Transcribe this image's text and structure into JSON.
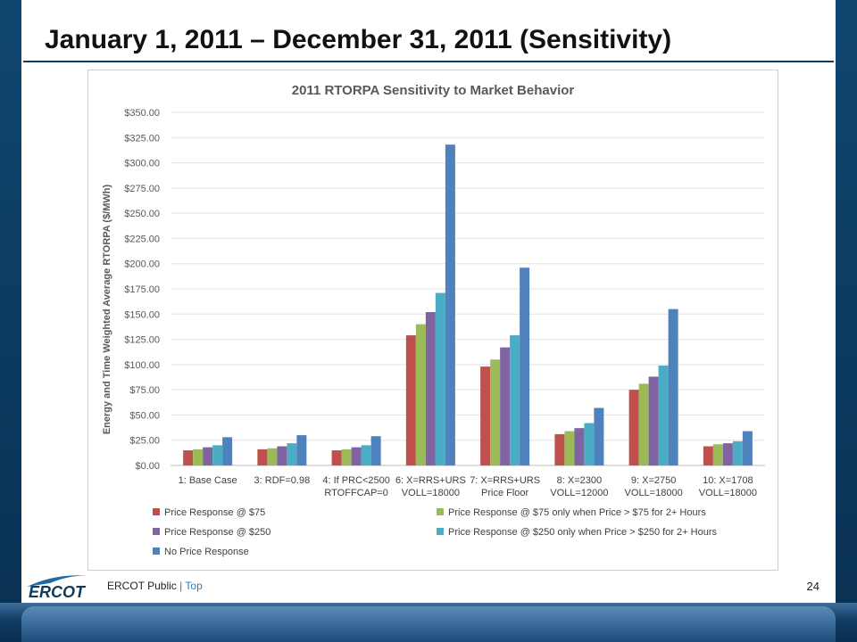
{
  "slide": {
    "title": "January 1, 2011 – December 31, 2011 (Sensitivity)",
    "footer": {
      "brand": "ERCOT",
      "classification": "ERCOT Public",
      "separator": "|",
      "link": "Top"
    },
    "page_number": "24",
    "colors": {
      "frame": "#0d3a5e",
      "rule": "#0e3d63"
    }
  },
  "chart_data": {
    "type": "bar",
    "title": "2011 RTORPA Sensitivity to Market Behavior",
    "xlabel": "",
    "ylabel": "Energy and Time Weighted Average RTORPA ($/MWh)",
    "ylim": [
      0,
      350
    ],
    "yticks": [
      "$0.00",
      "$25.00",
      "$50.00",
      "$75.00",
      "$100.00",
      "$125.00",
      "$150.00",
      "$175.00",
      "$200.00",
      "$225.00",
      "$250.00",
      "$275.00",
      "$300.00",
      "$325.00",
      "$350.00"
    ],
    "grid": true,
    "legend_position": "bottom",
    "categories": [
      [
        "1: Base Case"
      ],
      [
        "3: RDF=0.98"
      ],
      [
        "4: If PRC<2500",
        "RTOFFCAP=0"
      ],
      [
        "6: X=RRS+URS",
        "VOLL=18000"
      ],
      [
        "7: X=RRS+URS",
        "Price Floor"
      ],
      [
        "8: X=2300",
        "VOLL=12000"
      ],
      [
        "9: X=2750",
        "VOLL=18000"
      ],
      [
        "10: X=1708",
        "VOLL=18000"
      ]
    ],
    "series": [
      {
        "name": "Price Response @ $75",
        "color": "#c0504d",
        "values": [
          15,
          16,
          15,
          129,
          98,
          31,
          75,
          19
        ]
      },
      {
        "name": "Price Response @ $75 only when Price > $75 for 2+ Hours",
        "color": "#9bbb59",
        "values": [
          16,
          17,
          16,
          140,
          105,
          34,
          81,
          21
        ]
      },
      {
        "name": "Price Response @ $250",
        "color": "#8064a2",
        "values": [
          18,
          19,
          18,
          152,
          117,
          37,
          88,
          22
        ]
      },
      {
        "name": "Price Response @ $250 only when Price > $250 for 2+ Hours",
        "color": "#4bacc6",
        "values": [
          20,
          22,
          20,
          171,
          129,
          42,
          99,
          24
        ]
      },
      {
        "name": "No Price Response",
        "color": "#4f81bd",
        "values": [
          28,
          30,
          29,
          318,
          196,
          57,
          155,
          34
        ]
      }
    ]
  }
}
